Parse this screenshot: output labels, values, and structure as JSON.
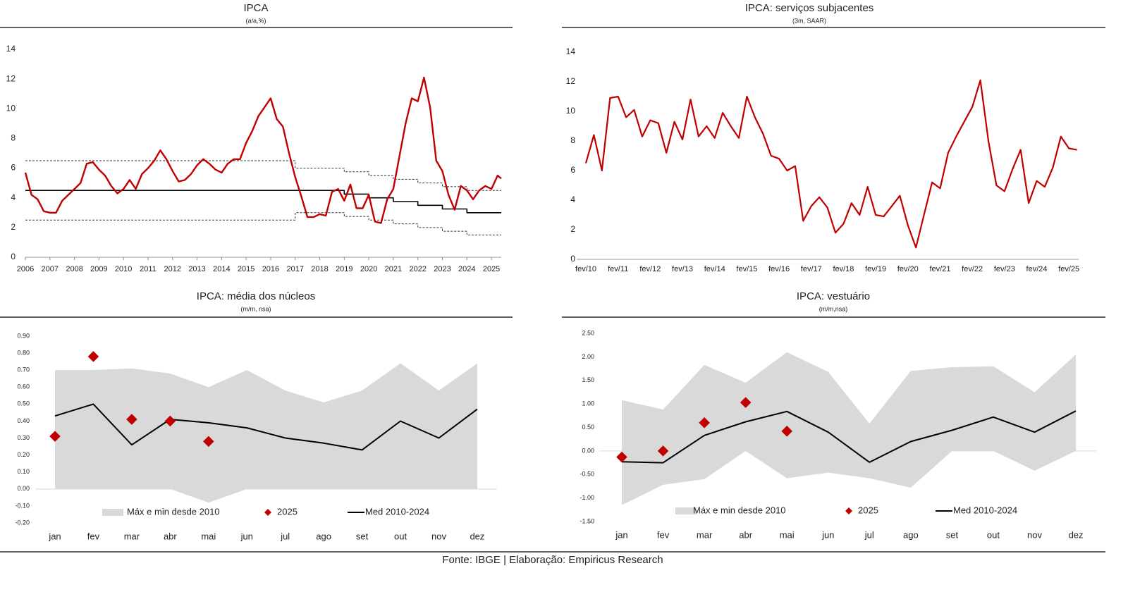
{
  "chart_data": [
    {
      "type": "line",
      "title": "IPCA",
      "subtitle": "(a/a,%)",
      "xlim": [
        2006,
        2025.4
      ],
      "xticks": [
        2006,
        2007,
        2008,
        2009,
        2010,
        2011,
        2012,
        2013,
        2014,
        2015,
        2016,
        2017,
        2018,
        2019,
        2020,
        2021,
        2022,
        2023,
        2024,
        2025
      ],
      "ylim": [
        0,
        14
      ],
      "yticks": [
        0,
        2,
        4,
        6,
        8,
        10,
        12,
        14
      ],
      "x": [
        2006,
        2006.25,
        2006.5,
        2006.75,
        2007,
        2007.25,
        2007.5,
        2007.75,
        2008,
        2008.25,
        2008.5,
        2008.75,
        2009,
        2009.25,
        2009.5,
        2009.75,
        2010,
        2010.25,
        2010.5,
        2010.75,
        2011,
        2011.25,
        2011.5,
        2011.75,
        2012,
        2012.25,
        2012.5,
        2012.75,
        2013,
        2013.25,
        2013.5,
        2013.75,
        2014,
        2014.25,
        2014.5,
        2014.75,
        2015,
        2015.25,
        2015.5,
        2015.75,
        2016,
        2016.25,
        2016.5,
        2016.75,
        2017,
        2017.25,
        2017.5,
        2017.75,
        2018,
        2018.25,
        2018.5,
        2018.75,
        2019,
        2019.25,
        2019.5,
        2019.75,
        2020,
        2020.25,
        2020.5,
        2020.75,
        2021,
        2021.25,
        2021.5,
        2021.75,
        2022,
        2022.25,
        2022.5,
        2022.75,
        2023,
        2023.25,
        2023.5,
        2023.75,
        2024,
        2024.25,
        2024.5,
        2024.75,
        2025,
        2025.25,
        2025.4
      ],
      "series": [
        {
          "color": "#000000",
          "dash": false,
          "width": 1.6,
          "x": [
            2006,
            2019,
            2019,
            2020,
            2020,
            2021,
            2021,
            2022,
            2022,
            2023,
            2023,
            2024,
            2024,
            2025.4
          ],
          "values": [
            4.5,
            4.5,
            4.25,
            4.25,
            4,
            4,
            3.75,
            3.75,
            3.5,
            3.5,
            3.25,
            3.25,
            3,
            3
          ]
        },
        {
          "color": "#333333",
          "dash": true,
          "width": 1,
          "x": [
            2006,
            2017,
            2017,
            2019,
            2019,
            2020,
            2020,
            2021,
            2021,
            2022,
            2022,
            2023,
            2023,
            2024,
            2024,
            2025.4
          ],
          "values": [
            6.5,
            6.5,
            6,
            6,
            5.75,
            5.75,
            5.5,
            5.5,
            5.25,
            5.25,
            5,
            5,
            4.75,
            4.75,
            4.5,
            4.5
          ]
        },
        {
          "color": "#333333",
          "dash": true,
          "width": 1,
          "x": [
            2006,
            2017,
            2017,
            2019,
            2019,
            2020,
            2020,
            2021,
            2021,
            2022,
            2022,
            2023,
            2023,
            2024,
            2024,
            2025.4
          ],
          "values": [
            2.5,
            2.5,
            3,
            3,
            2.75,
            2.75,
            2.5,
            2.5,
            2.25,
            2.25,
            2,
            2,
            1.75,
            1.75,
            1.5,
            1.5
          ]
        },
        {
          "color": "#c00000",
          "dash": false,
          "width": 2.4,
          "values": [
            5.7,
            4.2,
            3.9,
            3.1,
            3.0,
            3.0,
            3.8,
            4.2,
            4.6,
            5.0,
            6.3,
            6.4,
            5.9,
            5.5,
            4.8,
            4.3,
            4.6,
            5.2,
            4.6,
            5.6,
            6.0,
            6.5,
            7.2,
            6.6,
            5.8,
            5.1,
            5.2,
            5.6,
            6.2,
            6.6,
            6.3,
            5.9,
            5.7,
            6.3,
            6.6,
            6.6,
            7.7,
            8.5,
            9.5,
            10.1,
            10.7,
            9.3,
            8.8,
            7.0,
            5.4,
            4.1,
            2.7,
            2.7,
            2.9,
            2.8,
            4.4,
            4.6,
            3.8,
            4.9,
            3.3,
            3.3,
            4.2,
            2.4,
            2.3,
            3.9,
            4.6,
            6.8,
            9.0,
            10.7,
            10.5,
            12.1,
            10.1,
            6.5,
            5.8,
            4.2,
            3.2,
            4.8,
            4.5,
            3.9,
            4.5,
            4.8,
            4.6,
            5.5,
            5.3
          ]
        }
      ]
    },
    {
      "type": "line",
      "title": "IPCA: serviços subjacentes",
      "subtitle": "(3m, SAAR)",
      "ylim": [
        0,
        14
      ],
      "yticks": [
        0,
        2,
        4,
        6,
        8,
        10,
        12,
        14
      ],
      "categories": [
        "fev/10",
        null,
        null,
        null,
        "fev/11",
        null,
        null,
        null,
        "fev/12",
        null,
        null,
        null,
        "fev/13",
        null,
        null,
        null,
        "fev/14",
        null,
        null,
        null,
        "fev/15",
        null,
        null,
        null,
        "fev/16",
        null,
        null,
        null,
        "fev/17",
        null,
        null,
        null,
        "fev/18",
        null,
        null,
        null,
        "fev/19",
        null,
        null,
        null,
        "fev/20",
        null,
        null,
        null,
        "fev/21",
        null,
        null,
        null,
        "fev/22",
        null,
        null,
        null,
        "fev/23",
        null,
        null,
        null,
        "fev/24",
        null,
        null,
        null,
        "fev/25",
        null
      ],
      "series": [
        {
          "color": "#c00000",
          "dash": false,
          "width": 2.2,
          "values": [
            6.5,
            8.4,
            6.0,
            10.9,
            11.0,
            9.6,
            10.1,
            8.3,
            9.4,
            9.2,
            7.2,
            9.3,
            8.1,
            10.8,
            8.3,
            9.0,
            8.2,
            9.9,
            9.0,
            8.2,
            11.0,
            9.6,
            8.5,
            7.0,
            6.8,
            6.0,
            6.3,
            2.6,
            3.6,
            4.2,
            3.5,
            1.8,
            2.4,
            3.8,
            3.0,
            4.9,
            3.0,
            2.9,
            3.6,
            4.3,
            2.3,
            0.8,
            3.0,
            5.2,
            4.8,
            7.2,
            8.3,
            9.3,
            10.3,
            12.1,
            8.0,
            5.0,
            4.6,
            6.1,
            7.4,
            3.8,
            5.3,
            4.9,
            6.2,
            8.3,
            7.5,
            7.4
          ]
        }
      ]
    },
    {
      "type": "seasonal",
      "title": "IPCA: média dos núcleos",
      "subtitle": "(m/m, nsa)",
      "ylim": [
        -0.2,
        0.9
      ],
      "yticks": [
        {
          "value": -0.2,
          "label": "-0.20"
        },
        {
          "value": -0.1,
          "label": "-0.10"
        },
        {
          "value": 0,
          "label": "0.00"
        },
        {
          "value": 0.1,
          "label": "0.10"
        },
        {
          "value": 0.2,
          "label": "0.20"
        },
        {
          "value": 0.3,
          "label": "0.30"
        },
        {
          "value": 0.4,
          "label": "0.40"
        },
        {
          "value": 0.5,
          "label": "0.50"
        },
        {
          "value": 0.6,
          "label": "0.60"
        },
        {
          "value": 0.7,
          "label": "0.70"
        },
        {
          "value": 0.8,
          "label": "0.80"
        },
        {
          "value": 0.9,
          "label": "0.90"
        }
      ],
      "categories": [
        "jan",
        "fev",
        "mar",
        "abr",
        "mai",
        "jun",
        "jul",
        "ago",
        "set",
        "out",
        "nov",
        "dez"
      ],
      "legend": "bottom",
      "series": [
        {
          "name": "Máx e min desde 2010",
          "kind": "band",
          "color": "#d9d9d9",
          "values": [
            0.7,
            0.7,
            0.71,
            0.68,
            0.6,
            0.7,
            0.58,
            0.51,
            0.58,
            0.74,
            0.58,
            0.74
          ],
          "lower": [
            0,
            0,
            0,
            0,
            -0.08,
            0,
            0,
            0,
            0,
            0,
            0,
            0
          ]
        },
        {
          "name": "2025",
          "kind": "diamond",
          "color": "#c00000",
          "values": [
            0.31,
            0.78,
            0.41,
            0.4,
            0.28,
            null,
            null,
            null,
            null,
            null,
            null,
            null
          ]
        },
        {
          "name": "Med 2010-2024",
          "kind": "line",
          "color": "#000000",
          "values": [
            0.43,
            0.5,
            0.26,
            0.41,
            0.39,
            0.36,
            0.3,
            0.27,
            0.23,
            0.4,
            0.3,
            0.47
          ]
        }
      ]
    },
    {
      "type": "seasonal",
      "title": "IPCA: vestuário",
      "subtitle": "(m/m,nsa)",
      "ylim": [
        -1.5,
        2.5
      ],
      "yticks": [
        {
          "value": -1.5,
          "label": "-1.50"
        },
        {
          "value": -1,
          "label": "-1.00"
        },
        {
          "value": -0.5,
          "label": "-0.50"
        },
        {
          "value": 0,
          "label": "0.00"
        },
        {
          "value": 0.5,
          "label": "0.50"
        },
        {
          "value": 1,
          "label": "1.00"
        },
        {
          "value": 1.5,
          "label": "1.50"
        },
        {
          "value": 2,
          "label": "2.00"
        },
        {
          "value": 2.5,
          "label": "2.50"
        }
      ],
      "categories": [
        "jan",
        "fev",
        "mar",
        "abr",
        "mai",
        "jun",
        "jul",
        "ago",
        "set",
        "out",
        "nov",
        "dez"
      ],
      "legend": "bottom",
      "series": [
        {
          "name": "Máx e min desde 2010",
          "kind": "band",
          "color": "#d9d9d9",
          "values": [
            1.08,
            0.88,
            1.83,
            1.45,
            2.1,
            1.68,
            0.58,
            1.7,
            1.78,
            1.8,
            1.25,
            2.05
          ],
          "lower": [
            -1.15,
            -0.72,
            -0.6,
            0,
            -0.58,
            -0.46,
            -0.58,
            -0.78,
            0,
            0,
            -0.42,
            0
          ]
        },
        {
          "name": "2025",
          "kind": "diamond",
          "color": "#c00000",
          "values": [
            -0.13,
            0.0,
            0.6,
            1.03,
            0.42,
            null,
            null,
            null,
            null,
            null,
            null,
            null
          ]
        },
        {
          "name": "Med 2010-2024",
          "kind": "line",
          "color": "#000000",
          "values": [
            -0.23,
            -0.25,
            0.33,
            0.62,
            0.84,
            0.4,
            -0.24,
            0.2,
            0.44,
            0.72,
            0.4,
            0.85
          ]
        }
      ]
    }
  ],
  "footer": "Fonte: IBGE | Elaboração: Empiricus Research"
}
